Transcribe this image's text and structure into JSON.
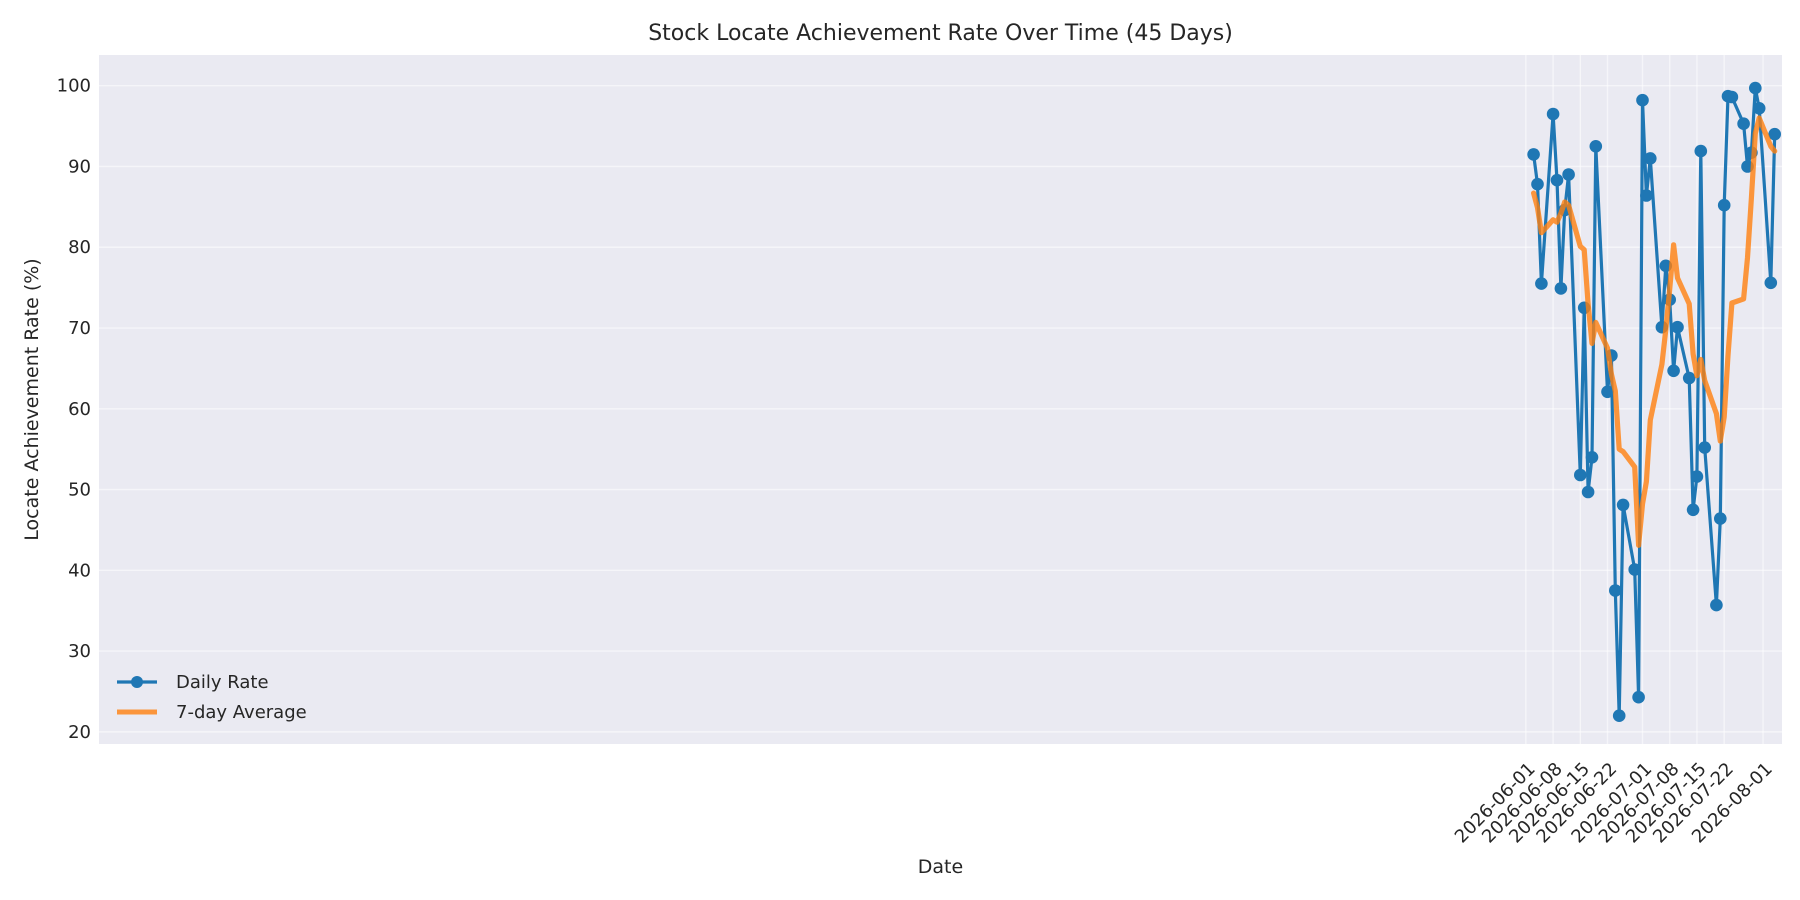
{
  "chart_data": {
    "type": "line",
    "title": "Stock Locate Achievement Rate Over Time (45 Days)",
    "xlabel": "Date",
    "ylabel": "Locate Achievement Rate (%)",
    "ylim": [
      18.5,
      103.8
    ],
    "xlim": [
      "2025-05-30T01:00",
      "2026-08-05T21:00"
    ],
    "x_ticks": [
      "2026-06-01",
      "2026-06-08",
      "2026-06-15",
      "2026-06-22",
      "2026-07-01",
      "2026-07-08",
      "2026-07-15",
      "2026-07-22",
      "2026-08-01"
    ],
    "y_ticks": [
      20,
      30,
      40,
      50,
      60,
      70,
      80,
      90,
      100
    ],
    "grid": true,
    "legend_position": "lower-left",
    "x": [
      "2026-06-03",
      "2026-06-04",
      "2026-06-05",
      "2026-06-08",
      "2026-06-09",
      "2026-06-10",
      "2026-06-11",
      "2026-06-12",
      "2026-06-15",
      "2026-06-16",
      "2026-06-17",
      "2026-06-18",
      "2026-06-19",
      "2026-06-22",
      "2026-06-23",
      "2026-06-24",
      "2026-06-25",
      "2026-06-26",
      "2026-06-29",
      "2026-06-30",
      "2026-07-01",
      "2026-07-02",
      "2026-07-03",
      "2026-07-06",
      "2026-07-07",
      "2026-07-08",
      "2026-07-09",
      "2026-07-10",
      "2026-07-13",
      "2026-07-14",
      "2026-07-15",
      "2026-07-16",
      "2026-07-17",
      "2026-07-20",
      "2026-07-21",
      "2026-07-22",
      "2026-07-23",
      "2026-07-24",
      "2026-07-27",
      "2026-07-28",
      "2026-07-29",
      "2026-07-30",
      "2026-07-31",
      "2026-08-03",
      "2026-08-04"
    ],
    "series": [
      {
        "name": "Daily Rate",
        "color": "#1f77b4",
        "marker": "circle",
        "values": [
          91.5,
          87.8,
          75.5,
          96.5,
          88.3,
          74.9,
          84.6,
          89.0,
          51.8,
          72.5,
          49.7,
          54.0,
          92.5,
          62.1,
          66.6,
          37.5,
          22.0,
          48.1,
          40.1,
          24.3,
          98.2,
          86.4,
          91.0,
          70.1,
          77.7,
          73.5,
          64.7,
          70.1,
          63.8,
          47.5,
          51.6,
          91.9,
          55.2,
          35.7,
          46.4,
          85.2,
          98.7,
          98.6,
          95.3,
          90.0,
          91.7,
          99.7,
          97.2,
          75.6,
          94.0
        ]
      },
      {
        "name": "7-day Average",
        "color": "#ff7f0e",
        "marker": "none",
        "values": [
          86.7,
          84.9,
          81.8,
          83.4,
          83.1,
          84.2,
          85.6,
          85.2,
          80.1,
          79.7,
          73.0,
          68.1,
          70.7,
          67.5,
          64.3,
          62.2,
          55.0,
          54.7,
          52.8,
          43.1,
          48.2,
          51.0,
          58.6,
          65.5,
          69.8,
          74.8,
          80.3,
          76.2,
          73.0,
          66.8,
          64.1,
          66.1,
          63.5,
          59.4,
          56.0,
          59.0,
          66.6,
          73.1,
          73.6,
          78.7,
          86.1,
          94.1,
          96.0,
          92.5,
          91.9
        ]
      }
    ]
  }
}
